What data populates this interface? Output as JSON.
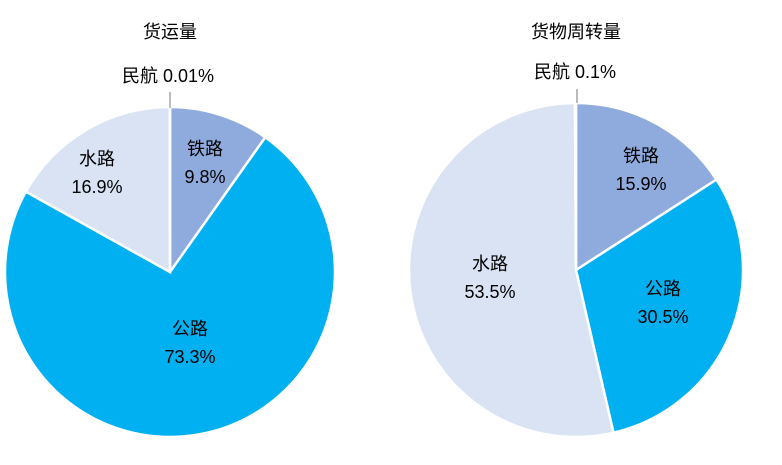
{
  "chart_data": [
    {
      "type": "pie",
      "title": "货运量",
      "slices": [
        {
          "label": "铁路",
          "value": 9.8,
          "value_label": "9.8%",
          "color": "#8faadc"
        },
        {
          "label": "公路",
          "value": 73.3,
          "value_label": "73.3%",
          "color": "#00b0f0"
        },
        {
          "label": "水路",
          "value": 16.9,
          "value_label": "16.9%",
          "color": "#dae3f3"
        },
        {
          "label": "民航",
          "value": 0.01,
          "value_label": "0.01%",
          "color": "#8faadc"
        }
      ]
    },
    {
      "type": "pie",
      "title": "货物周转量",
      "slices": [
        {
          "label": "铁路",
          "value": 15.9,
          "value_label": "15.9%",
          "color": "#8faadc"
        },
        {
          "label": "公路",
          "value": 30.5,
          "value_label": "30.5%",
          "color": "#00b0f0"
        },
        {
          "label": "水路",
          "value": 53.5,
          "value_label": "53.5%",
          "color": "#dae3f3"
        },
        {
          "label": "民航",
          "value": 0.1,
          "value_label": "0.1%",
          "color": "#8faadc"
        }
      ]
    }
  ]
}
